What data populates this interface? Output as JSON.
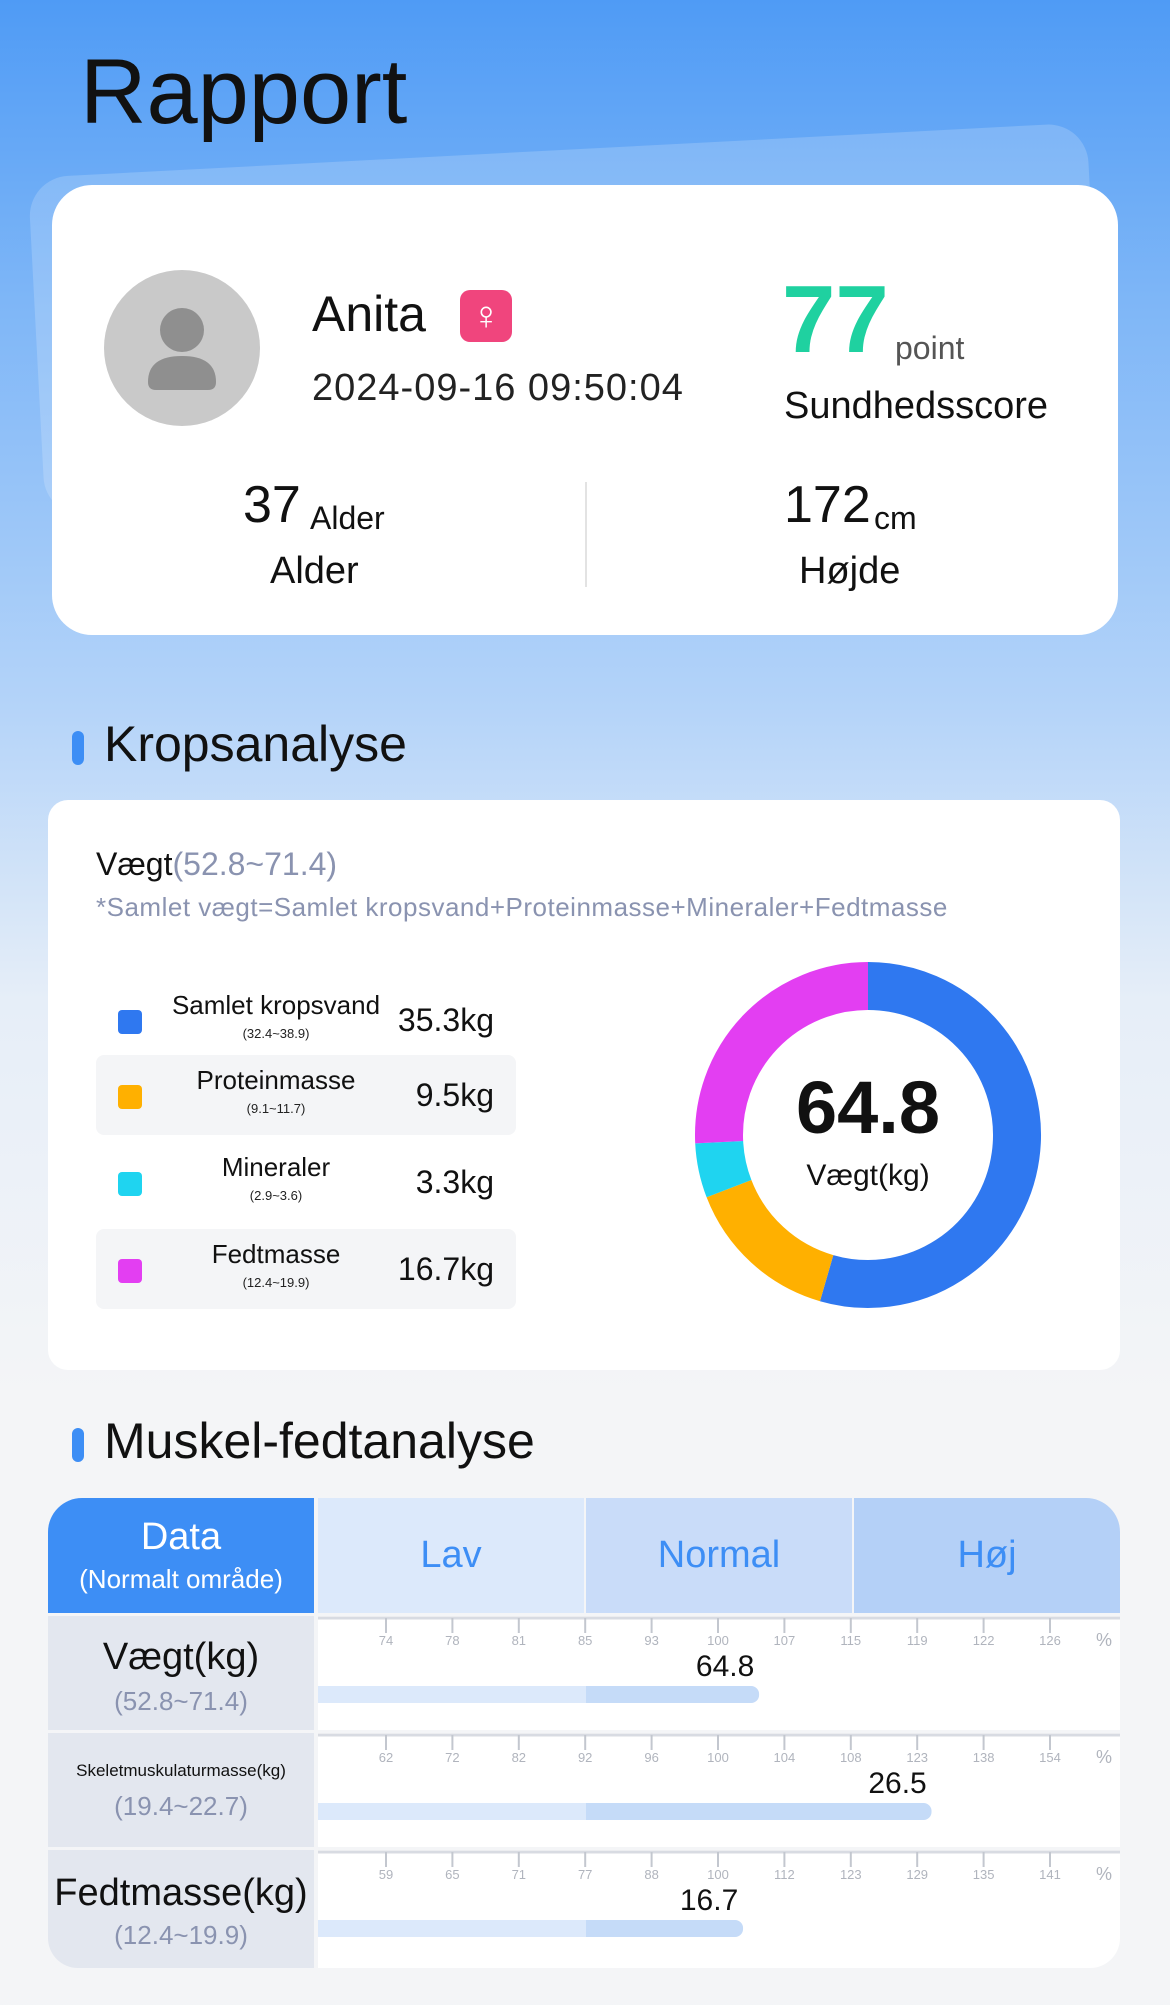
{
  "page": {
    "title": "Rapport"
  },
  "profile": {
    "name": "Anita",
    "gender_icon": "female-icon",
    "gender_symbol": "♀",
    "timestamp": "2024-09-16 09:50:04",
    "score": "77",
    "score_unit": "point",
    "score_label": "Sundhedsscore",
    "age_value": "37",
    "age_unit": "Alder",
    "age_label": "Alder",
    "height_value": "172",
    "height_unit": "cm",
    "height_label": "Højde"
  },
  "body_analysis": {
    "title": "Kropsanalyse",
    "weight_label": "Vægt",
    "weight_range": "(52.8~71.4)",
    "formula_note": "*Samlet vægt=Samlet kropsvand+Proteinmasse+Mineraler+Fedtmasse",
    "components": [
      {
        "name": "Samlet kropsvand",
        "range": "(32.4~38.9)",
        "value": "35.3kg",
        "amount": 35.3,
        "color": "#2f78f0"
      },
      {
        "name": "Proteinmasse",
        "range": "(9.1~11.7)",
        "value": "9.5kg",
        "amount": 9.5,
        "color": "#ffb000"
      },
      {
        "name": "Mineraler",
        "range": "(2.9~3.6)",
        "value": "3.3kg",
        "amount": 3.3,
        "color": "#1fd4f0"
      },
      {
        "name": "Fedtmasse",
        "range": "(12.4~19.9)",
        "value": "16.7kg",
        "amount": 16.7,
        "color": "#e33ef2"
      }
    ],
    "donut_value": "64.8",
    "donut_label": "Vægt(kg)"
  },
  "muscle_fat": {
    "title": "Muskel-fedtanalyse",
    "header_data": "Data",
    "header_data_sub": "(Normalt område)",
    "bands": [
      "Lav",
      "Normal",
      "Høj"
    ],
    "percent_symbol": "%",
    "rows": [
      {
        "name": "Vægt(kg)",
        "range": "(52.8~71.4)",
        "value": "64.8",
        "ticks": [
          "74",
          "78",
          "81",
          "85",
          "93",
          "100",
          "107",
          "115",
          "119",
          "122",
          "126"
        ],
        "level": 0.55
      },
      {
        "name": "Skeletmuskulaturmasse(kg)",
        "range": "(19.4~22.7)",
        "value": "26.5",
        "ticks": [
          "62",
          "72",
          "82",
          "92",
          "96",
          "100",
          "104",
          "108",
          "123",
          "138",
          "154"
        ],
        "level": 0.765
      },
      {
        "name": "Fedtmasse(kg)",
        "range": "(12.4~19.9)",
        "value": "16.7",
        "ticks": [
          "59",
          "65",
          "71",
          "77",
          "88",
          "100",
          "112",
          "123",
          "129",
          "135",
          "141"
        ],
        "level": 0.53
      }
    ]
  }
}
